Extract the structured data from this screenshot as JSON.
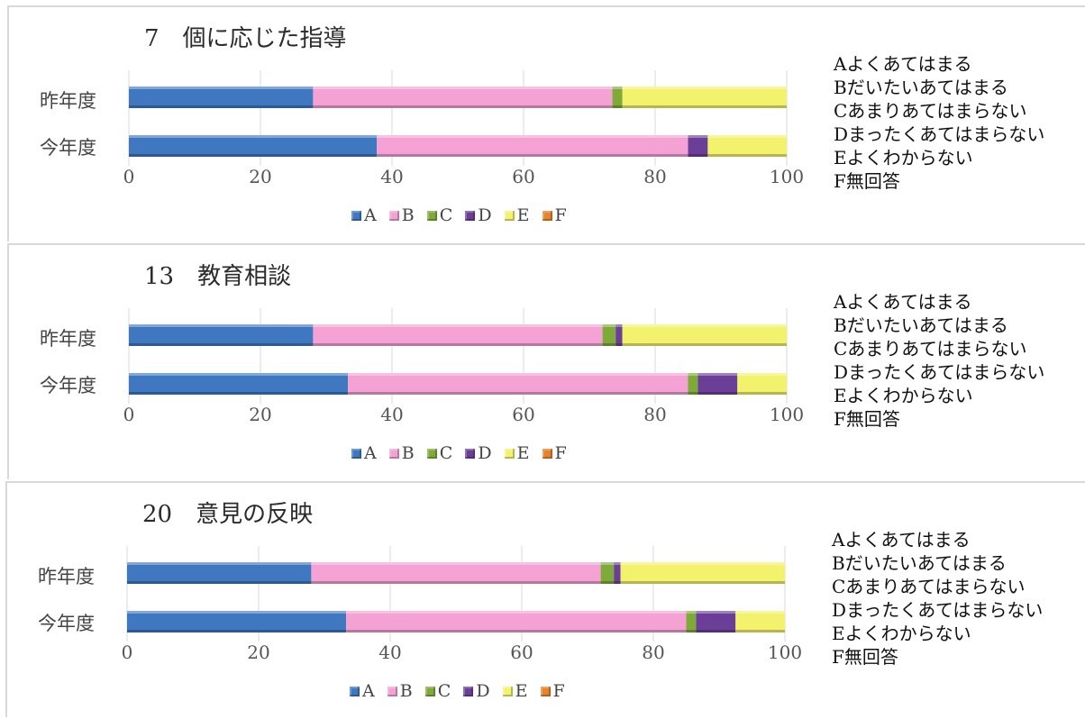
{
  "colors": {
    "A": "#3f78c0",
    "B": "#f3a2d3",
    "C": "#7faa3a",
    "D": "#6b3f98",
    "E": "#f2f26c",
    "F": "#e8832b"
  },
  "legend_labels": [
    "A",
    "B",
    "C",
    "D",
    "E",
    "F"
  ],
  "panels": [
    {
      "title": "7　個に応じた指導",
      "key_text": [
        "Aよくあてはまる",
        "Bだいたいあてはまる",
        "Cあまりあてはまらない",
        "Dまったくあてはまらない",
        "Eよくわからない",
        "F無回答"
      ]
    },
    {
      "title": "13　教育相談",
      "key_text": [
        "Aよくあてはまる",
        "Bだいたいあてはまる",
        "Cあまりあてはまらない",
        "Dまったくあてはまらない",
        "Eよくわからない",
        "F無回答"
      ]
    },
    {
      "title": "20　意見の反映",
      "key_text": [
        "Aよくあてはまる",
        "Bだいたいあてはまる",
        "Cあまりあてはまらない",
        "Dまったくあてはまらない",
        "Eよくわからない",
        "F無回答"
      ]
    }
  ],
  "chart_data": [
    {
      "type": "bar",
      "orientation": "horizontal",
      "stacked": true,
      "title": "7　個に応じた指導",
      "categories": [
        "昨年度",
        "今年度"
      ],
      "series": [
        {
          "name": "A",
          "values": [
            28,
            37.7
          ]
        },
        {
          "name": "B",
          "values": [
            45.5,
            47.3
          ]
        },
        {
          "name": "C",
          "values": [
            1.5,
            0
          ]
        },
        {
          "name": "D",
          "values": [
            0,
            3
          ]
        },
        {
          "name": "E",
          "values": [
            25,
            12
          ]
        },
        {
          "name": "F",
          "values": [
            0,
            0
          ]
        }
      ],
      "xlim": [
        0,
        100
      ],
      "xticks": [
        "0",
        "20",
        "40",
        "60",
        "80",
        "100"
      ],
      "grid": true,
      "legend": "bottom"
    },
    {
      "type": "bar",
      "orientation": "horizontal",
      "stacked": true,
      "title": "13　教育相談",
      "categories": [
        "昨年度",
        "今年度"
      ],
      "series": [
        {
          "name": "A",
          "values": [
            28,
            33.3
          ]
        },
        {
          "name": "B",
          "values": [
            44,
            51.7
          ]
        },
        {
          "name": "C",
          "values": [
            2,
            1.5
          ]
        },
        {
          "name": "D",
          "values": [
            1,
            6
          ]
        },
        {
          "name": "E",
          "values": [
            25,
            7.5
          ]
        },
        {
          "name": "F",
          "values": [
            0,
            0
          ]
        }
      ],
      "xlim": [
        0,
        100
      ],
      "xticks": [
        "0",
        "20",
        "40",
        "60",
        "80",
        "100"
      ],
      "grid": true,
      "legend": "bottom"
    },
    {
      "type": "bar",
      "orientation": "horizontal",
      "stacked": true,
      "title": "20　意見の反映",
      "categories": [
        "昨年度",
        "今年度"
      ],
      "series": [
        {
          "name": "A",
          "values": [
            28,
            33.3
          ]
        },
        {
          "name": "B",
          "values": [
            44,
            51.7
          ]
        },
        {
          "name": "C",
          "values": [
            2,
            1.5
          ]
        },
        {
          "name": "D",
          "values": [
            1,
            6
          ]
        },
        {
          "name": "E",
          "values": [
            25,
            7.5
          ]
        },
        {
          "name": "F",
          "values": [
            0,
            0
          ]
        }
      ],
      "xlim": [
        0,
        100
      ],
      "xticks": [
        "0",
        "20",
        "40",
        "60",
        "80",
        "100"
      ],
      "grid": true,
      "legend": "bottom"
    }
  ]
}
